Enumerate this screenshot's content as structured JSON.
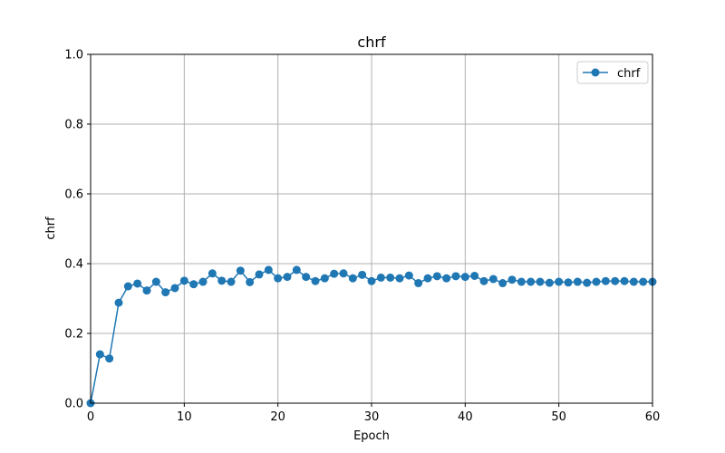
{
  "chart_data": {
    "type": "line",
    "title": "chrf",
    "xlabel": "Epoch",
    "ylabel": "chrf",
    "xlim": [
      0,
      60
    ],
    "ylim": [
      0,
      1.0
    ],
    "xticks": [
      "0",
      "10",
      "20",
      "30",
      "40",
      "50",
      "60"
    ],
    "yticks": [
      "0.0",
      "0.2",
      "0.4",
      "0.6",
      "0.8",
      "1.0"
    ],
    "grid": true,
    "legend_position": "top-right",
    "series": [
      {
        "name": "chrf",
        "color": "#1f77b4",
        "x": [
          0,
          1,
          2,
          3,
          4,
          5,
          6,
          7,
          8,
          9,
          10,
          11,
          12,
          13,
          14,
          15,
          16,
          17,
          18,
          19,
          20,
          21,
          22,
          23,
          24,
          25,
          26,
          27,
          28,
          29,
          30,
          31,
          32,
          33,
          34,
          35,
          36,
          37,
          38,
          39,
          40,
          41,
          42,
          43,
          44,
          45,
          46,
          47,
          48,
          49,
          50,
          51,
          52,
          53,
          54,
          55,
          56,
          57,
          58,
          59,
          60
        ],
        "values": [
          0.0,
          0.14,
          0.128,
          0.288,
          0.335,
          0.343,
          0.323,
          0.348,
          0.318,
          0.33,
          0.351,
          0.341,
          0.348,
          0.372,
          0.351,
          0.348,
          0.38,
          0.347,
          0.369,
          0.382,
          0.358,
          0.362,
          0.382,
          0.362,
          0.35,
          0.358,
          0.371,
          0.372,
          0.358,
          0.368,
          0.35,
          0.36,
          0.36,
          0.358,
          0.366,
          0.344,
          0.358,
          0.364,
          0.358,
          0.364,
          0.362,
          0.365,
          0.35,
          0.356,
          0.344,
          0.354,
          0.348,
          0.348,
          0.348,
          0.345,
          0.348,
          0.346,
          0.348,
          0.345,
          0.348,
          0.35,
          0.35,
          0.35,
          0.348,
          0.348,
          0.348
        ]
      }
    ]
  }
}
